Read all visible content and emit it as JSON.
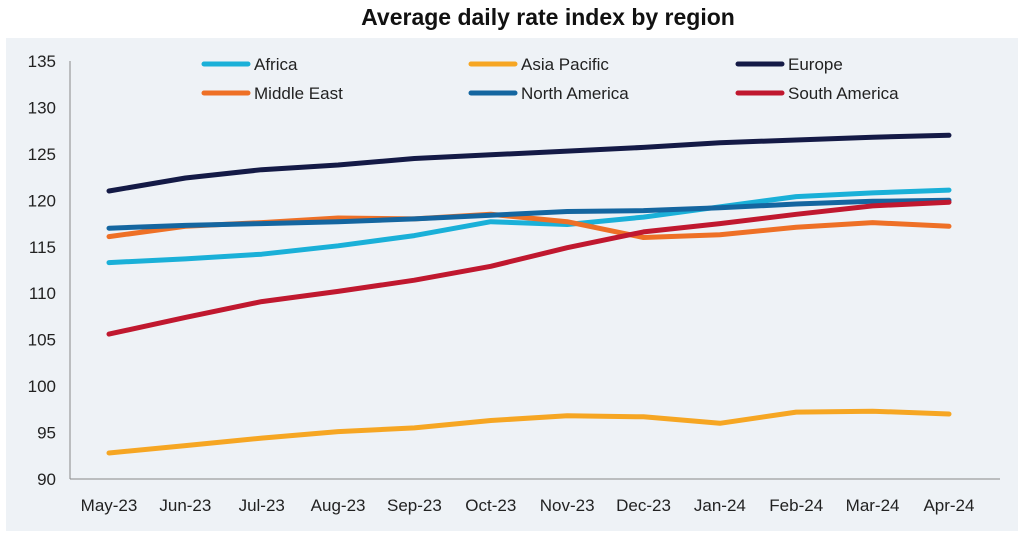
{
  "chart_data": {
    "type": "line",
    "title": "Average daily rate index by region",
    "xlabel": "",
    "ylabel": "",
    "ylim": [
      90,
      135
    ],
    "yticks": [
      90,
      95,
      100,
      105,
      110,
      115,
      120,
      125,
      130,
      135
    ],
    "categories": [
      "May-23",
      "Jun-23",
      "Jul-23",
      "Aug-23",
      "Sep-23",
      "Oct-23",
      "Nov-23",
      "Dec-23",
      "Jan-24",
      "Feb-24",
      "Mar-24",
      "Apr-24"
    ],
    "grid": false,
    "legend_position": "top",
    "series": [
      {
        "name": "Africa",
        "color": "#1AB0D8",
        "values": [
          113.3,
          113.7,
          114.2,
          115.1,
          116.2,
          117.7,
          117.4,
          118.2,
          119.3,
          120.4,
          120.8,
          121.1
        ]
      },
      {
        "name": "Asia Pacific",
        "color": "#F6A623",
        "values": [
          92.8,
          93.6,
          94.4,
          95.1,
          95.5,
          96.3,
          96.8,
          96.7,
          96.0,
          97.2,
          97.3,
          97.0
        ]
      },
      {
        "name": "Europe",
        "color": "#141A46",
        "values": [
          121.0,
          122.4,
          123.3,
          123.8,
          124.5,
          124.9,
          125.3,
          125.7,
          126.2,
          126.5,
          126.8,
          127.0
        ]
      },
      {
        "name": "Middle East",
        "color": "#EE7026",
        "values": [
          116.1,
          117.2,
          117.6,
          118.1,
          118.0,
          118.5,
          117.7,
          116.0,
          116.3,
          117.1,
          117.6,
          117.2
        ]
      },
      {
        "name": "North America",
        "color": "#1466A0",
        "values": [
          117.0,
          117.3,
          117.5,
          117.7,
          118.0,
          118.4,
          118.8,
          118.9,
          119.2,
          119.6,
          119.9,
          120.0
        ]
      },
      {
        "name": "South America",
        "color": "#C0182F",
        "values": [
          105.6,
          107.4,
          109.1,
          110.2,
          111.4,
          112.9,
          114.9,
          116.6,
          117.5,
          118.5,
          119.4,
          119.8
        ]
      }
    ]
  }
}
